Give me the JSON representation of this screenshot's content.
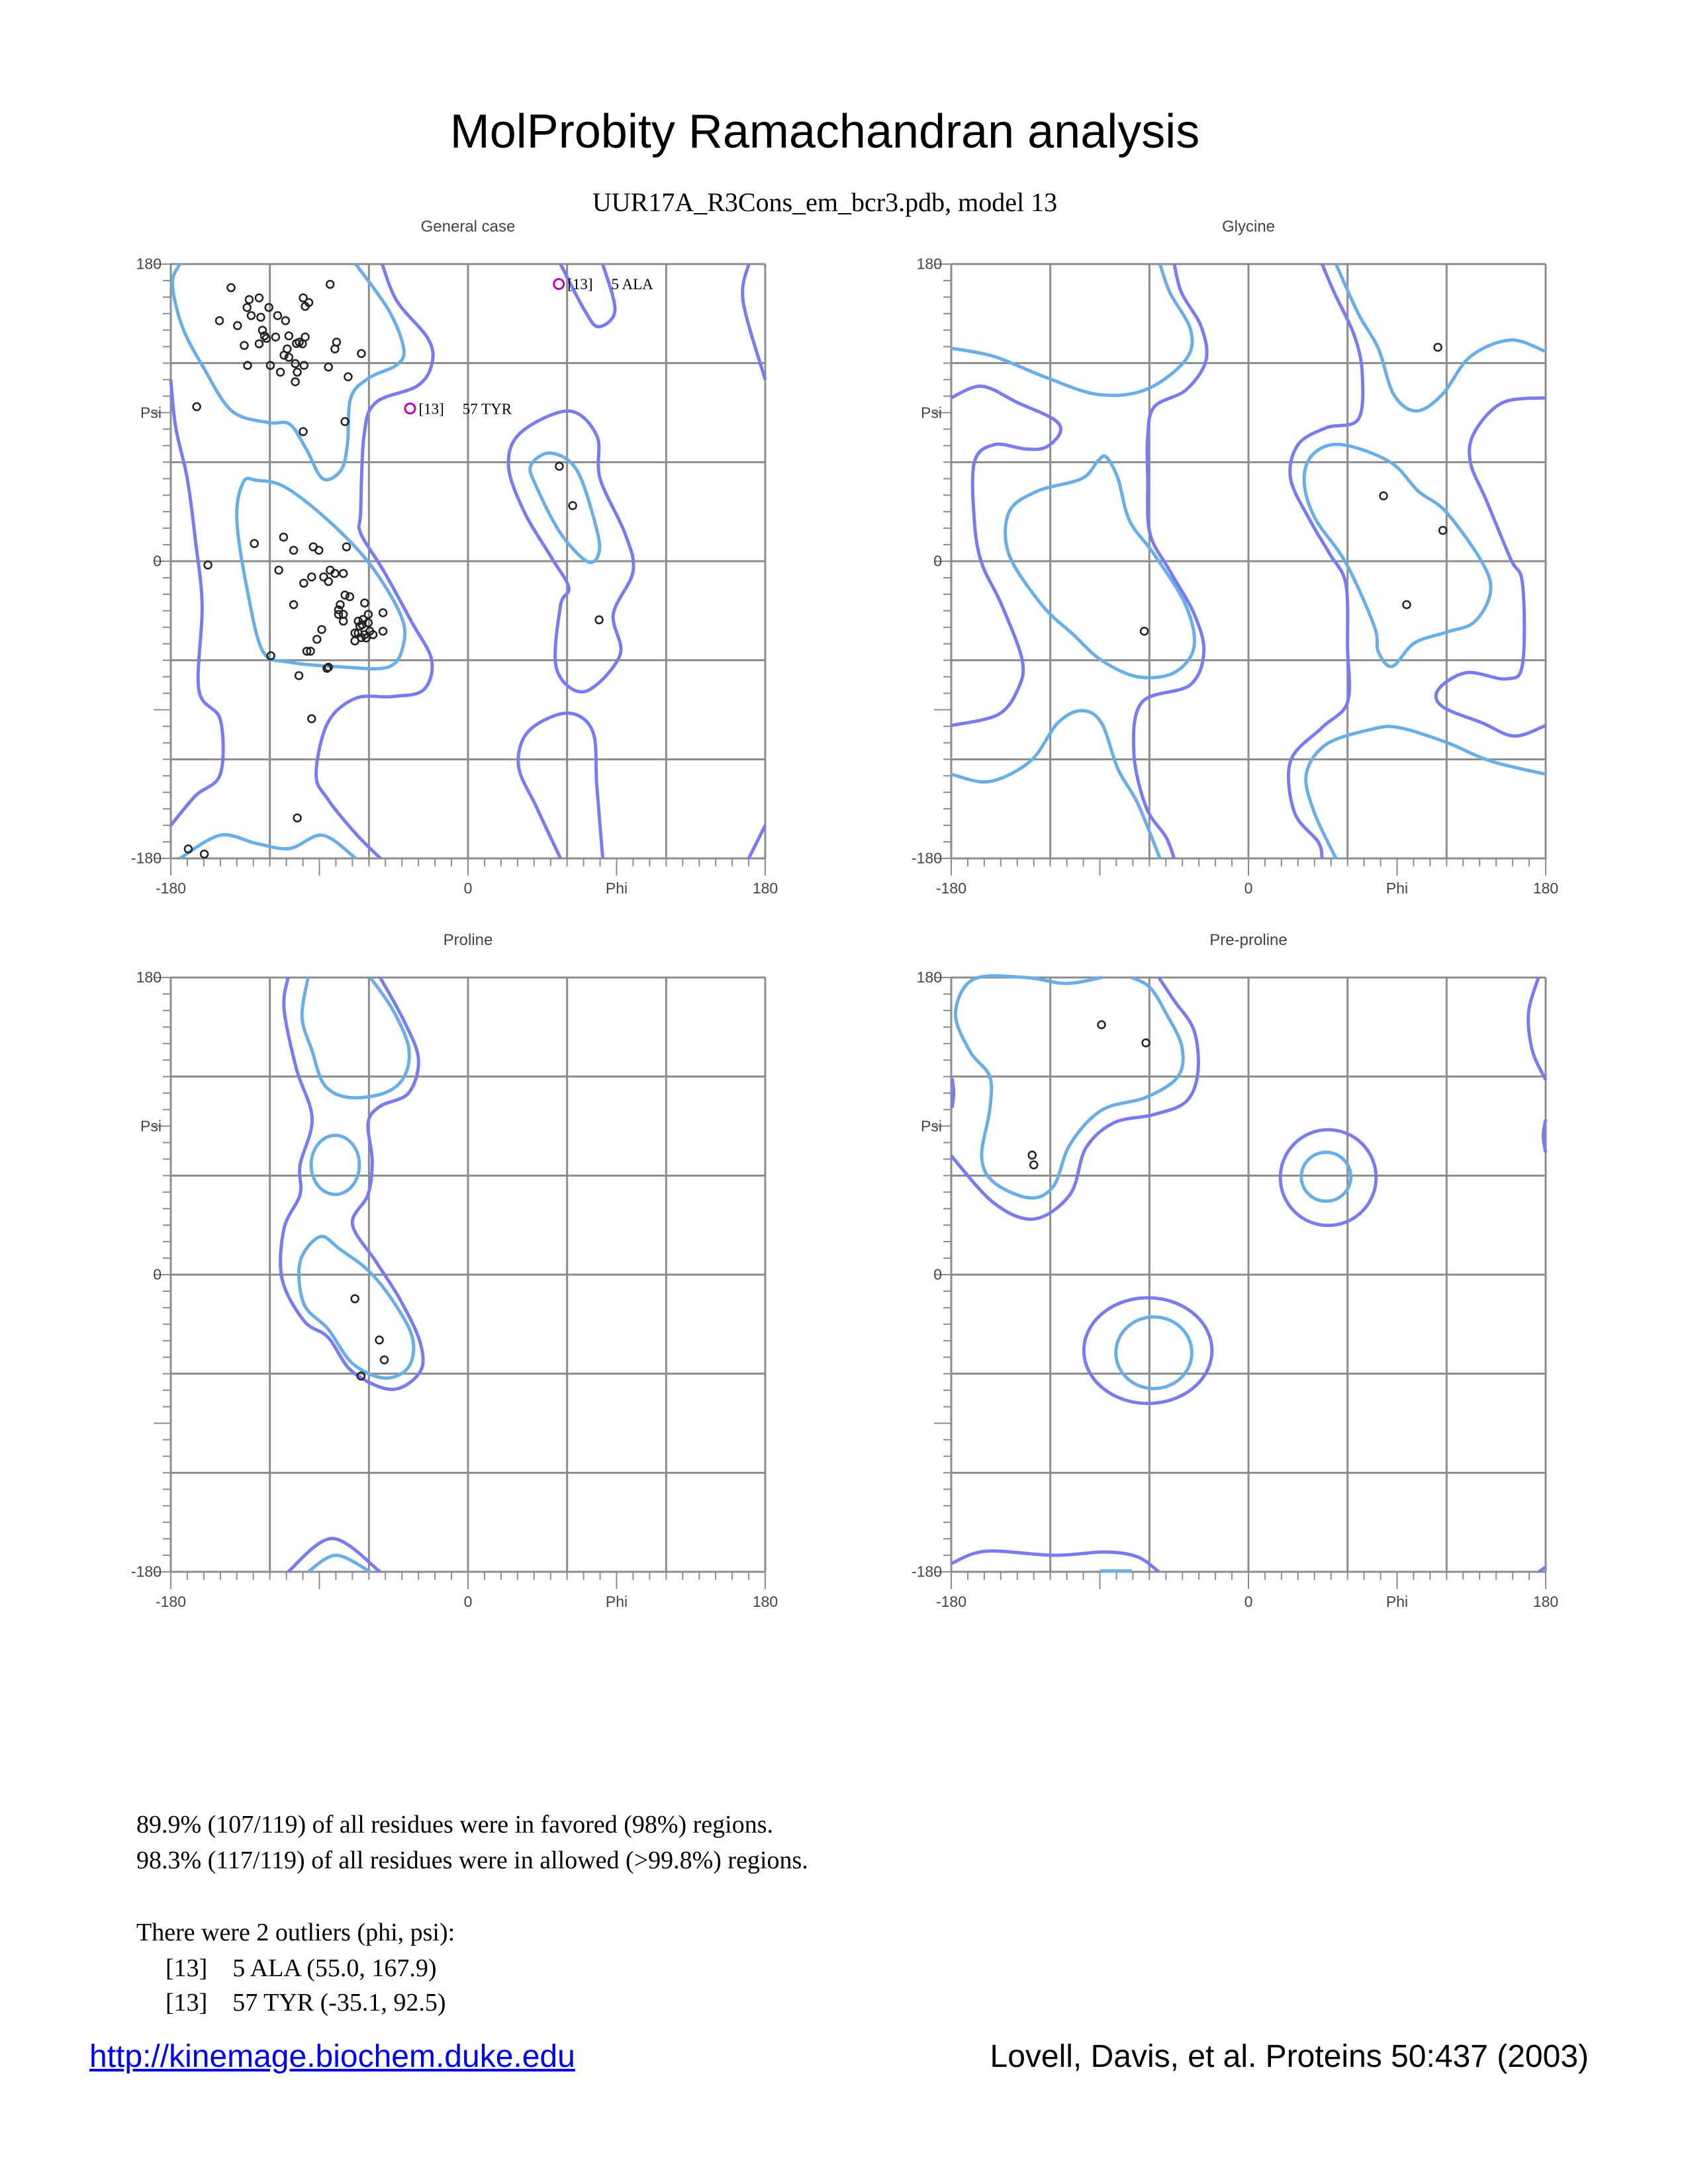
{
  "title": "MolProbity Ramachandran analysis",
  "subtitle": "UUR17A_R3Cons_em_bcr3.pdb, model 13",
  "colors": {
    "favored_contour": "#6aaee8",
    "allowed_contour": "#7b7bf0",
    "grid": "#8c8c8c",
    "point": "#222222",
    "outlier": "#c000c0"
  },
  "chart_data": [
    {
      "type": "scatter",
      "title": "General case",
      "xlabel": "Phi",
      "ylabel": "Psi",
      "xlim": [
        -180,
        180
      ],
      "ylim": [
        -180,
        180
      ],
      "x_tick_labels": [
        "-180",
        "0",
        "Phi",
        "180"
      ],
      "y_tick_labels": [
        "180",
        "Psi",
        "0",
        "-180"
      ],
      "grid": true,
      "points": [
        [
          -143.5,
          165.7
        ],
        [
          -83.5,
          167.7
        ],
        [
          -132.5,
          158.5
        ],
        [
          -126.5,
          159.5
        ],
        [
          -133.8,
          153.7
        ],
        [
          -120.6,
          153.7
        ],
        [
          -131.3,
          148.8
        ],
        [
          -125.5,
          147.8
        ],
        [
          -115.3,
          148.8
        ],
        [
          -110.5,
          145.7
        ],
        [
          -150.5,
          145.7
        ],
        [
          -139.6,
          142.7
        ],
        [
          -99.8,
          159.5
        ],
        [
          -96.4,
          156.7
        ],
        [
          -98.6,
          154.4
        ],
        [
          -124.5,
          139.9
        ],
        [
          -123.3,
          136.5
        ],
        [
          -122.1,
          135.0
        ],
        [
          -116.5,
          135.8
        ],
        [
          -108.5,
          136.5
        ],
        [
          -98.6,
          135.8
        ],
        [
          -103.9,
          131.9
        ],
        [
          -102.2,
          132.7
        ],
        [
          -100.3,
          131.7
        ],
        [
          -135.5,
          130.7
        ],
        [
          -126.5,
          131.7
        ],
        [
          -109.5,
          128.6
        ],
        [
          -111.4,
          124.8
        ],
        [
          -108.5,
          123.5
        ],
        [
          -79.6,
          132.7
        ],
        [
          -80.6,
          128.6
        ],
        [
          -64.6,
          125.8
        ],
        [
          -133.5,
          118.6
        ],
        [
          -119.7,
          118.6
        ],
        [
          -104.6,
          119.7
        ],
        [
          -99.3,
          118.6
        ],
        [
          -113.6,
          114.5
        ],
        [
          -103.4,
          114.5
        ],
        [
          -84.5,
          117.6
        ],
        [
          -72.6,
          111.7
        ],
        [
          -104.6,
          108.7
        ],
        [
          -164.3,
          93.6
        ],
        [
          -74.5,
          84.6
        ],
        [
          -99.8,
          78.5
        ],
        [
          -111.7,
          14.6
        ],
        [
          -129.4,
          10.7
        ],
        [
          -105.6,
          6.6
        ],
        [
          -93.7,
          8.7
        ],
        [
          -90.3,
          6.6
        ],
        [
          -73.6,
          8.7
        ],
        [
          -157.5,
          -2.3
        ],
        [
          -114.6,
          -5.4
        ],
        [
          -83.5,
          -5.4
        ],
        [
          -80.6,
          -7.4
        ],
        [
          -75.5,
          -7.4
        ],
        [
          -87.4,
          -9.5
        ],
        [
          -84.5,
          -12.3
        ],
        [
          -94.7,
          -9.5
        ],
        [
          -99.5,
          -13.3
        ],
        [
          -74.5,
          -20.5
        ],
        [
          -71.6,
          -21.5
        ],
        [
          -62.6,
          -25.3
        ],
        [
          -105.6,
          -26.3
        ],
        [
          -77.4,
          -26.3
        ],
        [
          -78.4,
          -29.4
        ],
        [
          -75.5,
          -32.2
        ],
        [
          -78.4,
          -32.2
        ],
        [
          -60.4,
          -32.2
        ],
        [
          -51.5,
          -31.2
        ],
        [
          -75.5,
          -36.3
        ],
        [
          -66.5,
          -36.3
        ],
        [
          -63.6,
          -35.3
        ],
        [
          -60.4,
          -37.3
        ],
        [
          -65.5,
          -39.4
        ],
        [
          -64.1,
          -38.4
        ],
        [
          -88.6,
          -41.4
        ],
        [
          -68.5,
          -43.5
        ],
        [
          -66.5,
          -43.5
        ],
        [
          -62.6,
          -44.5
        ],
        [
          -59.5,
          -42.4
        ],
        [
          -57.5,
          -44.5
        ],
        [
          -51.5,
          -42.4
        ],
        [
          -61.7,
          -46.5
        ],
        [
          -64.6,
          -46.3
        ],
        [
          -68.5,
          -48.3
        ],
        [
          -91.5,
          -47.3
        ],
        [
          -97.6,
          -54.5
        ],
        [
          -95.4,
          -54.5
        ],
        [
          -119.4,
          -57.3
        ],
        [
          -85.4,
          -64.9
        ],
        [
          -84.5,
          -64.2
        ],
        [
          -102.4,
          -69.3
        ],
        [
          -94.7,
          -95.4
        ],
        [
          -103.4,
          -155.5
        ],
        [
          -169.4,
          -174.3
        ],
        [
          -159.7,
          -177.4
        ],
        [
          55.3,
          57.5
        ],
        [
          63.4,
          33.7
        ],
        [
          79.4,
          -35.5
        ]
      ],
      "outliers": [
        {
          "model": "[13]",
          "residue": "5 ALA",
          "phi": 55.0,
          "psi": 167.9
        },
        {
          "model": "[13]",
          "residue": "57 TYR",
          "phi": -35.1,
          "psi": 92.5
        }
      ]
    },
    {
      "type": "scatter",
      "title": "Glycine",
      "xlabel": "Phi",
      "ylabel": "Psi",
      "xlim": [
        -180,
        180
      ],
      "ylim": [
        -180,
        180
      ],
      "x_tick_labels": [
        "-180",
        "0",
        "Phi",
        "180"
      ],
      "y_tick_labels": [
        "180",
        "Psi",
        "0",
        "-180"
      ],
      "grid": true,
      "points": [
        [
          114.7,
          129.6
        ],
        [
          81.8,
          39.6
        ],
        [
          117.7,
          18.7
        ],
        [
          95.8,
          -26.3
        ],
        [
          -63.1,
          -42.4
        ]
      ],
      "outliers": []
    },
    {
      "type": "scatter",
      "title": "Proline",
      "xlabel": "Phi",
      "ylabel": "Psi",
      "xlim": [
        -180,
        180
      ],
      "ylim": [
        -180,
        180
      ],
      "x_tick_labels": [
        "-180",
        "0",
        "Phi",
        "180"
      ],
      "y_tick_labels": [
        "180",
        "Psi",
        "0",
        "-180"
      ],
      "grid": true,
      "points": [
        [
          -68.5,
          -14.6
        ],
        [
          -53.7,
          -39.6
        ],
        [
          -50.7,
          -51.6
        ],
        [
          -64.8,
          -61.4
        ]
      ],
      "outliers": []
    },
    {
      "type": "scatter",
      "title": "Pre-proline",
      "xlabel": "Phi",
      "ylabel": "Psi",
      "xlim": [
        -180,
        180
      ],
      "ylim": [
        -180,
        180
      ],
      "x_tick_labels": [
        "-180",
        "0",
        "Phi",
        "180"
      ],
      "y_tick_labels": [
        "180",
        "Psi",
        "0",
        "-180"
      ],
      "grid": true,
      "points": [
        [
          -89.0,
          151.4
        ],
        [
          -62.1,
          140.4
        ],
        [
          -131.0,
          72.4
        ],
        [
          -130.0,
          66.5
        ]
      ],
      "outliers": []
    }
  ],
  "summary": {
    "favored": "89.9% (107/119) of all residues were in favored (98%) regions.",
    "allowed": "98.3% (117/119) of all residues were in allowed (>99.8%) regions.",
    "outliers_header": "There were 2 outliers (phi, psi):",
    "outlier_lines": [
      "[13]    5 ALA (55.0, 167.9)",
      "[13]    57 TYR (-35.1, 92.5)"
    ]
  },
  "footer": {
    "link": "http://kinemage.biochem.duke.edu",
    "citation": "Lovell, Davis, et al. Proteins 50:437 (2003)"
  }
}
